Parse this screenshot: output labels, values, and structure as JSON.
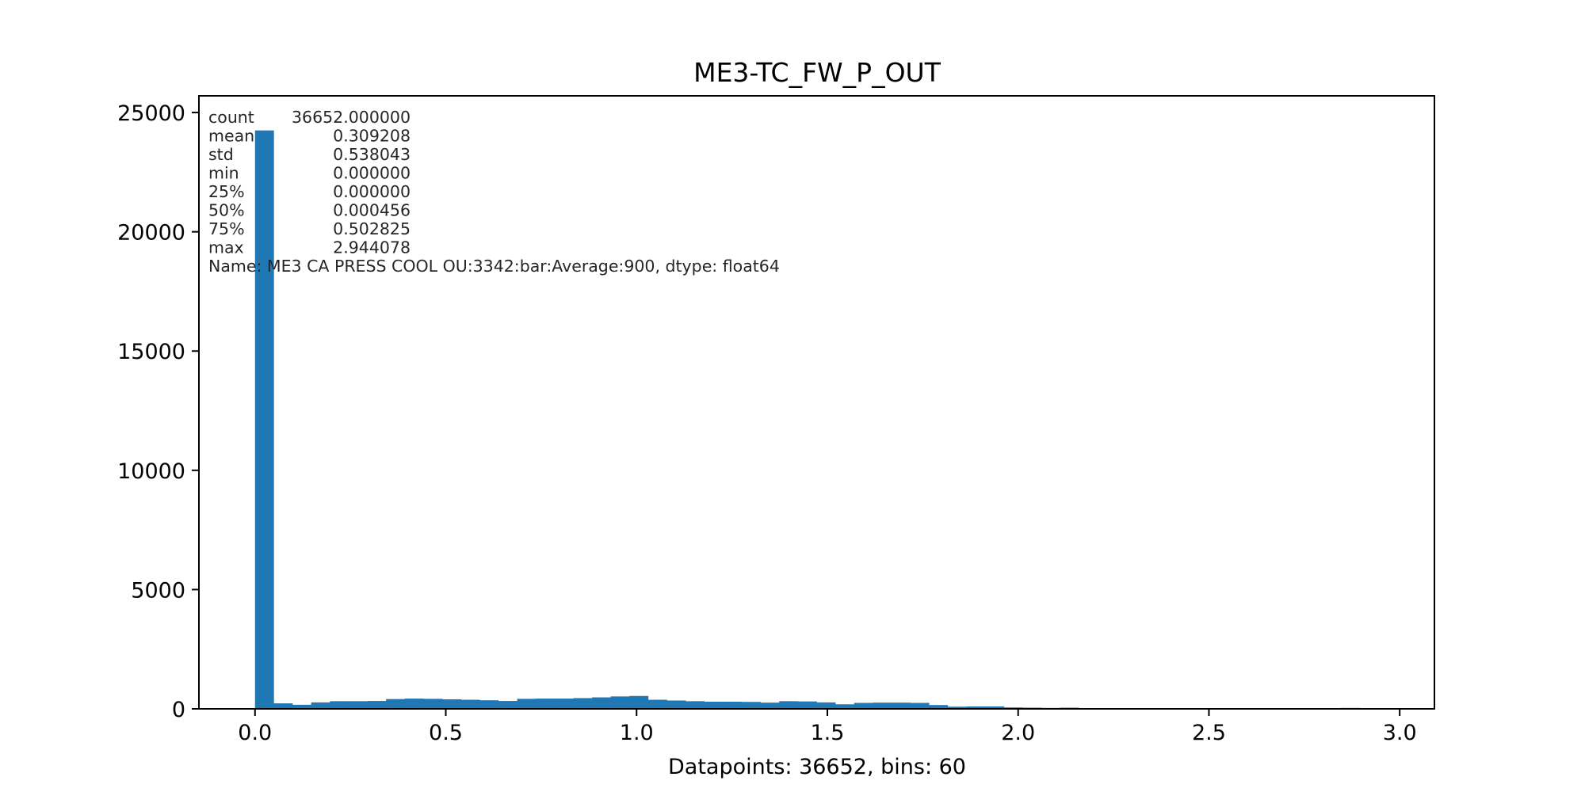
{
  "chart_data": {
    "type": "bar",
    "title": "ME3-TC_FW_P_OUT",
    "xlabel": "Datapoints: 36652, bins: 60",
    "ylabel": "",
    "xlim": [
      -0.147,
      3.091
    ],
    "ylim": [
      0,
      25700
    ],
    "xticks": [
      0.0,
      0.5,
      1.0,
      1.5,
      2.0,
      2.5,
      3.0
    ],
    "xtick_labels": [
      "0.0",
      "0.5",
      "1.0",
      "1.5",
      "2.0",
      "2.5",
      "3.0"
    ],
    "yticks": [
      0,
      5000,
      10000,
      15000,
      20000,
      25000
    ],
    "ytick_labels": [
      "0",
      "5000",
      "10000",
      "15000",
      "20000",
      "25000"
    ],
    "bins": 60,
    "bin_start": 0.0,
    "bin_width": 0.049068,
    "values": [
      24250,
      230,
      170,
      270,
      320,
      320,
      330,
      410,
      430,
      420,
      400,
      380,
      360,
      330,
      420,
      430,
      430,
      450,
      480,
      520,
      540,
      380,
      350,
      320,
      300,
      300,
      290,
      260,
      320,
      310,
      270,
      190,
      250,
      260,
      260,
      250,
      160,
      90,
      100,
      100,
      60,
      50,
      40,
      50,
      30,
      0,
      0,
      0,
      0,
      0,
      0,
      0,
      0,
      0,
      0,
      0,
      0,
      0,
      40,
      20
    ],
    "bar_color": "#1f77b4",
    "grid": false,
    "legend": "none",
    "annotation": {
      "lines": [
        {
          "key": "count",
          "value": "36652.000000"
        },
        {
          "key": "mean",
          "value": "0.309208"
        },
        {
          "key": "std",
          "value": "0.538043"
        },
        {
          "key": "min",
          "value": "0.000000"
        },
        {
          "key": "25%",
          "value": "0.000000"
        },
        {
          "key": "50%",
          "value": "0.000456"
        },
        {
          "key": "75%",
          "value": "0.502825"
        },
        {
          "key": "max",
          "value": "2.944078"
        }
      ],
      "footer": "Name: ME3 CA PRESS COOL OU:3342:bar:Average:900, dtype: float64"
    }
  }
}
